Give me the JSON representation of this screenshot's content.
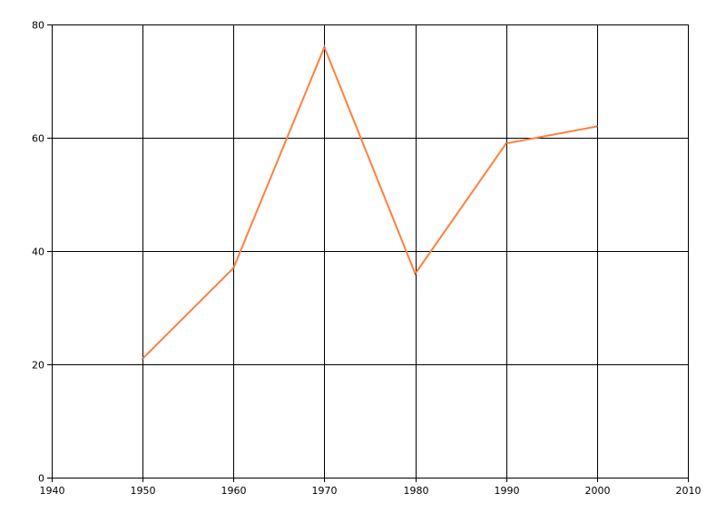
{
  "chart_data": {
    "type": "line",
    "title": "",
    "xlabel": "",
    "ylabel": "",
    "xlim": [
      1940,
      2010
    ],
    "ylim": [
      0,
      80
    ],
    "x_ticks": [
      1940,
      1950,
      1960,
      1970,
      1980,
      1990,
      2000,
      2010
    ],
    "y_ticks": [
      0,
      20,
      40,
      60,
      80
    ],
    "x_tick_labels": [
      "1940",
      "1950",
      "1960",
      "1970",
      "1980",
      "1990",
      "2000",
      "2010"
    ],
    "y_tick_labels": [
      "0",
      "20",
      "40",
      "60",
      "80"
    ],
    "grid": true,
    "series": [
      {
        "color": "#ff7f3f",
        "x": [
          1950,
          1960,
          1970,
          1980,
          1990,
          2000
        ],
        "y": [
          21,
          37,
          76,
          36,
          59,
          62
        ]
      }
    ]
  }
}
